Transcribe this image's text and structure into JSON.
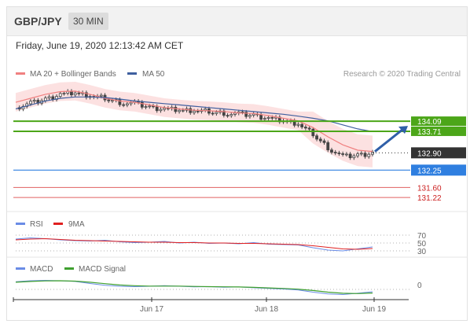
{
  "header": {
    "symbol": "GBP/JPY",
    "timeframe": "30 MIN",
    "timestamp": "Friday, June 19, 2020 12:13:42 AM CET"
  },
  "legend": {
    "ma20_label": "MA 20 + Bollinger Bands",
    "ma50_label": "MA 50",
    "credit": "Research © 2020 Trading Central"
  },
  "colors": {
    "ma20": "#f08080",
    "bollinger_fill": "#fbdcdc",
    "ma50": "#3f5f9f",
    "candle": "#444444",
    "support_resistance": "#4ca619",
    "pivot": "#2f7fe0",
    "target_low": "#e06060",
    "rsi": "#6a8ce6",
    "rsi_ma": "#e02020",
    "macd": "#6a8ce6",
    "macd_signal": "#3fa02f"
  },
  "chart_data": [
    {
      "type": "line",
      "title": "GBP/JPY",
      "interval": "30 MIN",
      "x_ticks": [
        "Jun 17",
        "Jun 18",
        "Jun 19"
      ],
      "ylim": [
        130.9,
        135.6
      ],
      "series": [
        {
          "name": "MA 20 + Bollinger Bands",
          "values": [
            134.8,
            134.95,
            135.1,
            135.2,
            135.22,
            135.1,
            134.95,
            134.85,
            134.8,
            134.7,
            134.6,
            134.55,
            134.5,
            134.48,
            134.45,
            134.4,
            134.38,
            134.3,
            134.2,
            134.1,
            133.85,
            133.5,
            133.2,
            133.0,
            132.95
          ]
        },
        {
          "name": "MA 50",
          "values": [
            134.55,
            134.7,
            134.85,
            134.95,
            135.0,
            135.0,
            134.98,
            134.92,
            134.85,
            134.8,
            134.75,
            134.7,
            134.65,
            134.6,
            134.55,
            134.5,
            134.45,
            134.4,
            134.35,
            134.28,
            134.2,
            134.1,
            133.95,
            133.8,
            133.7
          ]
        }
      ],
      "close_values": [
        134.6,
        134.75,
        134.9,
        135.1,
        135.15,
        135.05,
        134.95,
        134.8,
        134.75,
        134.6,
        134.55,
        134.5,
        134.5,
        134.45,
        134.4,
        134.35,
        134.3,
        134.2,
        134.1,
        134.0,
        133.6,
        133.1,
        132.75,
        132.8,
        132.9
      ],
      "levels": [
        {
          "value": 134.09,
          "label": "134.09",
          "kind": "resistance",
          "color": "#4ca619"
        },
        {
          "value": 133.71,
          "label": "133.71",
          "kind": "resistance",
          "color": "#4ca619"
        },
        {
          "value": 132.9,
          "label": "132.90",
          "kind": "last",
          "color": "#333333"
        },
        {
          "value": 132.25,
          "label": "132.25",
          "kind": "pivot",
          "color": "#2f7fe0"
        },
        {
          "value": 131.6,
          "label": "131.60",
          "kind": "support",
          "color": "#e06060"
        },
        {
          "value": 131.22,
          "label": "131.22",
          "kind": "support",
          "color": "#e06060"
        }
      ],
      "forecast": "up toward 134.09"
    },
    {
      "type": "line",
      "title": "RSI",
      "ylim": [
        20,
        80
      ],
      "y_ticks": [
        "70",
        "50",
        "30"
      ],
      "series": [
        {
          "name": "RSI",
          "values": [
            60,
            63,
            61,
            58,
            56,
            55,
            57,
            53,
            51,
            52,
            54,
            50,
            52,
            49,
            50,
            48,
            51,
            47,
            46,
            45,
            38,
            32,
            30,
            35,
            40
          ]
        },
        {
          "name": "9MA",
          "values": [
            58,
            60,
            61,
            59,
            57,
            56,
            55,
            54,
            53,
            52,
            52,
            51,
            51,
            50,
            50,
            49,
            49,
            48,
            47,
            46,
            43,
            39,
            35,
            34,
            36
          ]
        }
      ]
    },
    {
      "type": "line",
      "title": "MACD",
      "y_ticks": [
        "0"
      ],
      "ylim": [
        -0.6,
        0.6
      ],
      "series": [
        {
          "name": "MACD",
          "values": [
            0.25,
            0.3,
            0.32,
            0.3,
            0.26,
            0.15,
            0.05,
            0.0,
            -0.02,
            0.0,
            0.03,
            0.0,
            -0.03,
            -0.02,
            -0.05,
            -0.04,
            -0.08,
            -0.12,
            -0.15,
            -0.2,
            -0.32,
            -0.42,
            -0.45,
            -0.38,
            -0.3
          ]
        },
        {
          "name": "MACD Signal",
          "values": [
            0.22,
            0.26,
            0.29,
            0.3,
            0.28,
            0.22,
            0.14,
            0.07,
            0.03,
            0.01,
            0.01,
            0.01,
            -0.01,
            -0.02,
            -0.03,
            -0.04,
            -0.06,
            -0.09,
            -0.12,
            -0.16,
            -0.23,
            -0.32,
            -0.38,
            -0.4,
            -0.37
          ]
        }
      ]
    }
  ],
  "rsi_legend": {
    "rsi_label": "RSI",
    "ma_label": "9MA"
  },
  "macd_legend": {
    "macd_label": "MACD",
    "signal_label": "MACD Signal"
  }
}
